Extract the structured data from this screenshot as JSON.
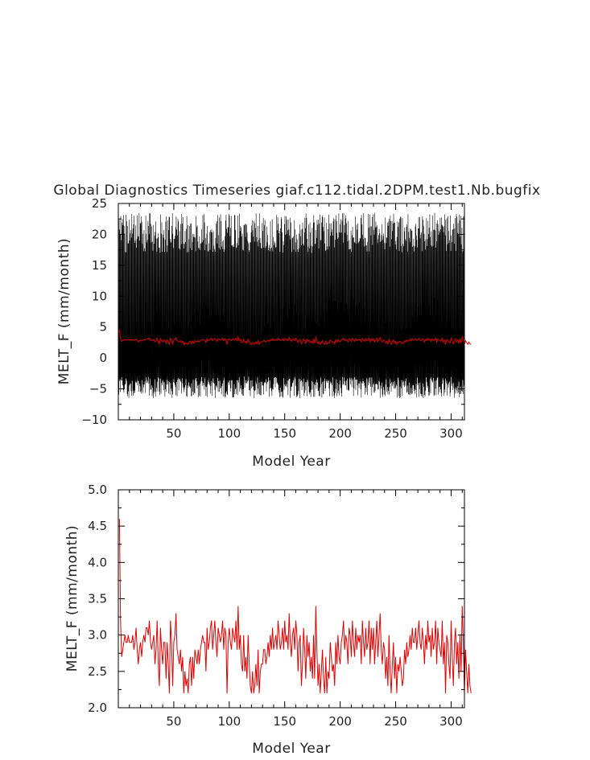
{
  "chart_data": [
    {
      "type": "line",
      "title": "Global Diagnostics Timeseries giaf.c112.tidal.2DPM.test1.Nb.bugfix",
      "xlabel": "Model Year",
      "ylabel": "MELT_F (mm/month)",
      "xlim": [
        0,
        312
      ],
      "ylim": [
        -10,
        25
      ],
      "xticks": [
        50,
        100,
        150,
        200,
        250,
        300
      ],
      "xtick_labels": [
        "50",
        "100",
        "150",
        "200",
        "250",
        "300"
      ],
      "yticks": [
        -10,
        -5,
        0,
        5,
        10,
        15,
        20,
        25
      ],
      "ytick_labels": [
        "−10",
        "−5",
        "0",
        "5",
        "10",
        "15",
        "20",
        "25"
      ],
      "series": [
        {
          "kind": "monthly",
          "color": "#000000",
          "description_values": {
            "annual_high_range": [
              17,
              23.5
            ],
            "annual_low_range": [
              -6.5,
              -3
            ],
            "envelope_upper": [
              [
                0,
                2
              ],
              [
                20,
                4
              ],
              [
                35,
                9
              ],
              [
                45,
                6
              ],
              [
                55,
                5
              ],
              [
                70,
                8
              ],
              [
                85,
                10
              ],
              [
                95,
                7
              ],
              [
                110,
                5
              ],
              [
                125,
                4
              ],
              [
                140,
                7
              ],
              [
                155,
                10
              ],
              [
                165,
                7
              ],
              [
                180,
                6
              ],
              [
                190,
                10
              ],
              [
                205,
                9
              ],
              [
                215,
                10
              ],
              [
                230,
                7
              ],
              [
                245,
                6
              ],
              [
                260,
                5
              ],
              [
                270,
                9
              ],
              [
                285,
                10
              ],
              [
                300,
                6
              ],
              [
                312,
                5
              ]
            ]
          }
        },
        {
          "kind": "annual_mean",
          "color": "#e00000",
          "values": [
            4.6,
            3.2,
            2.7,
            2.8,
            2.9,
            3.0,
            2.9,
            2.9,
            3.0,
            2.9,
            2.9,
            2.9,
            3.0,
            2.8,
            2.9,
            3.1,
            2.8,
            2.6,
            2.8,
            2.9,
            2.7,
            2.9,
            3.0,
            2.9,
            3.1,
            3.1,
            3.0,
            3.2,
            2.9,
            2.8,
            2.9,
            3.0,
            2.6,
            2.8,
            3.2,
            2.6,
            2.3,
            3.1,
            2.8,
            2.6,
            2.9,
            2.9,
            2.4,
            2.9,
            2.6,
            2.2,
            3.2,
            2.9,
            2.3,
            2.9,
            3.0,
            3.3,
            2.8,
            2.7,
            2.6,
            2.8,
            2.5,
            2.7,
            2.2,
            2.5,
            2.3,
            2.4,
            2.2,
            2.6,
            2.7,
            2.3,
            2.7,
            2.4,
            2.8,
            2.7,
            2.6,
            2.8,
            2.6,
            2.8,
            2.9,
            3.0,
            2.9,
            2.9,
            2.5,
            3.1,
            2.8,
            2.9,
            3.1,
            3.2,
            2.8,
            3.0,
            3.2,
            2.9,
            2.7,
            3.1,
            3.0,
            2.9,
            3.0,
            3.2,
            2.8,
            3.1,
            3.0,
            2.2,
            2.9,
            3.1,
            2.9,
            2.8,
            3.1,
            3.0,
            2.9,
            3.2,
            2.8,
            3.4,
            2.8,
            3.0,
            2.6,
            2.5,
            3.0,
            2.5,
            2.7,
            2.4,
            3.0,
            2.6,
            2.3,
            2.2,
            2.5,
            2.2,
            2.3,
            2.6,
            2.3,
            2.8,
            2.2,
            2.5,
            2.6,
            2.6,
            2.8,
            2.8,
            2.6,
            2.7,
            2.9,
            2.7,
            3.0,
            2.8,
            3.1,
            2.8,
            2.9,
            3.0,
            2.8,
            3.2,
            3.0,
            2.8,
            2.9,
            3.1,
            2.8,
            3.2,
            2.9,
            3.0,
            2.8,
            3.3,
            2.9,
            2.7,
            3.0,
            3.1,
            2.8,
            3.2,
            3.0,
            2.5,
            2.9,
            3.0,
            2.3,
            2.6,
            3.1,
            2.8,
            2.4,
            3.0,
            2.7,
            2.9,
            2.5,
            2.7,
            2.4,
            3.0,
            2.4,
            3.4,
            2.8,
            2.3,
            2.6,
            2.2,
            2.5,
            2.8,
            2.4,
            2.2,
            2.7,
            2.2,
            2.5,
            2.4,
            2.9,
            2.7,
            2.5,
            2.6,
            2.3,
            2.9,
            2.6,
            3.0,
            2.7,
            2.6,
            2.9,
            3.0,
            3.2,
            2.8,
            3.0,
            2.9,
            2.6,
            3.1,
            3.0,
            2.7,
            3.2,
            2.9,
            2.7,
            3.1,
            2.8,
            3.0,
            2.9,
            3.0,
            2.6,
            3.2,
            2.9,
            2.7,
            3.1,
            2.8,
            2.9,
            3.2,
            2.6,
            3.1,
            2.8,
            3.1,
            2.6,
            2.9,
            3.2,
            2.7,
            3.0,
            3.3,
            2.8,
            2.6,
            2.9,
            2.8,
            2.4,
            2.7,
            2.3,
            3.0,
            2.5,
            2.2,
            2.6,
            2.9,
            2.4,
            2.7,
            2.2,
            2.6,
            2.5,
            2.7,
            2.5,
            2.3,
            2.4,
            2.8,
            2.6,
            2.9,
            2.7,
            2.8,
            3.0,
            2.8,
            3.1,
            2.9,
            2.9,
            3.1,
            2.8,
            3.0,
            3.2,
            2.9,
            2.8,
            3.1,
            2.9,
            2.6,
            3.0,
            2.8,
            3.2,
            2.9,
            3.0,
            2.7,
            3.1,
            2.8,
            2.9,
            3.2,
            2.6,
            3.1,
            2.9,
            2.8,
            2.7,
            3.2,
            2.6,
            2.9,
            2.2,
            3.0,
            2.9,
            2.6,
            2.4,
            3.2,
            2.7,
            2.3,
            2.9,
            3.1,
            2.6,
            2.9,
            2.4,
            3.0,
            2.5,
            3.4,
            2.9,
            2.2,
            2.8,
            2.5,
            2.2,
            2.6,
            2.3,
            2.2
          ]
        }
      ]
    },
    {
      "type": "line",
      "title": "",
      "xlabel": "Model Year",
      "ylabel": "MELT_F (mm/month)",
      "xlim": [
        0,
        312
      ],
      "ylim": [
        2.0,
        5.0
      ],
      "xticks": [
        50,
        100,
        150,
        200,
        250,
        300
      ],
      "xtick_labels": [
        "50",
        "100",
        "150",
        "200",
        "250",
        "300"
      ],
      "yticks": [
        2.0,
        2.5,
        3.0,
        3.5,
        4.0,
        4.5,
        5.0
      ],
      "ytick_labels": [
        "2.0",
        "2.5",
        "3.0",
        "3.5",
        "4.0",
        "4.5",
        "5.0"
      ],
      "series": [
        {
          "kind": "annual_mean",
          "color": "#e00000",
          "source": 0
        }
      ]
    }
  ]
}
